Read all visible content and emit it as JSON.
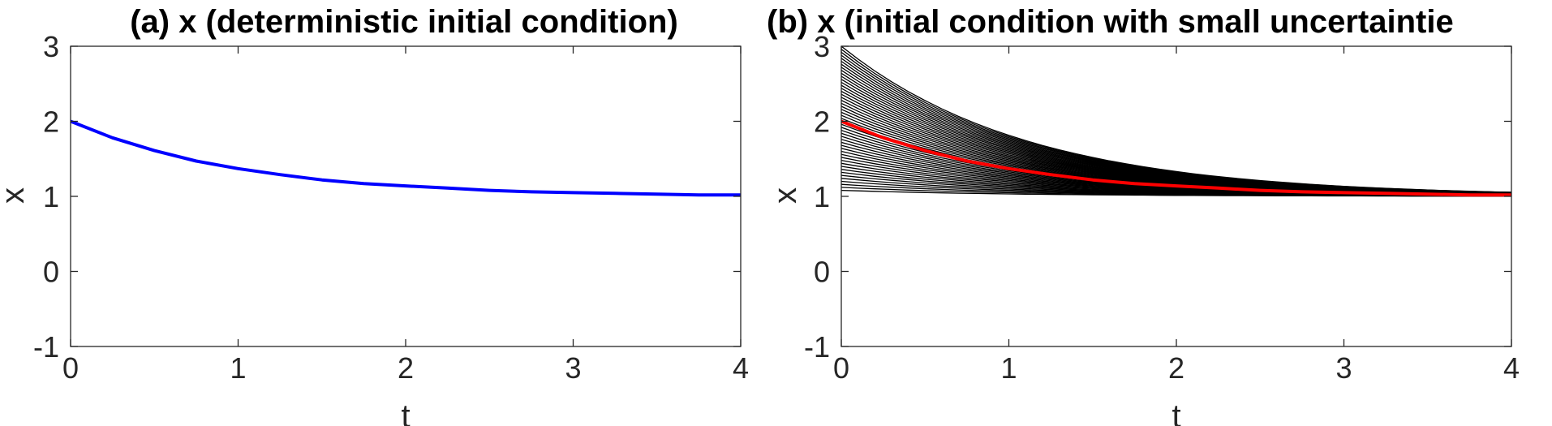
{
  "chart_data": [
    {
      "type": "line",
      "title": "(a) x (deterministic initial condition)",
      "xlabel": "t",
      "ylabel": "x",
      "xlim": [
        0,
        4
      ],
      "ylim": [
        -1,
        3
      ],
      "xticks": [
        0,
        1,
        2,
        3,
        4
      ],
      "yticks": [
        -1,
        0,
        1,
        2,
        3
      ],
      "grid": false,
      "series": [
        {
          "color": "#0000ff",
          "x": [
            0,
            0.25,
            0.5,
            0.75,
            1,
            1.25,
            1.5,
            1.75,
            2,
            2.25,
            2.5,
            2.75,
            3,
            3.25,
            3.5,
            3.75,
            4
          ],
          "y": [
            2.0,
            1.78,
            1.61,
            1.47,
            1.37,
            1.29,
            1.22,
            1.17,
            1.14,
            1.11,
            1.08,
            1.06,
            1.05,
            1.04,
            1.03,
            1.02,
            1.02
          ]
        }
      ]
    },
    {
      "type": "line",
      "title": "(b) x (initial condition with small uncertaintie",
      "xlabel": "t",
      "ylabel": "x",
      "xlim": [
        0,
        4
      ],
      "ylim": [
        -1,
        3
      ],
      "xticks": [
        0,
        1,
        2,
        3,
        4
      ],
      "yticks": [
        -1,
        0,
        1,
        2,
        3
      ],
      "grid": false,
      "ensemble": {
        "color": "#000000",
        "initial_values": [
          3.0,
          2.96,
          2.92,
          2.88,
          2.84,
          2.8,
          2.76,
          2.72,
          2.68,
          2.64,
          2.6,
          2.56,
          2.52,
          2.48,
          2.44,
          2.4,
          2.36,
          2.32,
          2.28,
          2.24,
          2.2,
          2.16,
          2.12,
          2.08,
          2.04,
          2.0,
          1.96,
          1.92,
          1.88,
          1.84,
          1.8,
          1.76,
          1.72,
          1.68,
          1.64,
          1.6,
          1.56,
          1.52,
          1.48,
          1.44,
          1.4,
          1.36,
          1.32,
          1.28,
          1.24,
          1.2,
          1.16,
          1.12,
          1.08
        ],
        "decay_rate": 0.9
      },
      "series": [
        {
          "color": "#ff0000",
          "x": [
            0,
            0.25,
            0.5,
            0.75,
            1,
            1.25,
            1.5,
            1.75,
            2,
            2.25,
            2.5,
            2.75,
            3,
            3.25,
            3.5,
            3.75,
            4
          ],
          "y": [
            2.0,
            1.78,
            1.61,
            1.47,
            1.37,
            1.29,
            1.22,
            1.17,
            1.14,
            1.11,
            1.08,
            1.06,
            1.05,
            1.04,
            1.03,
            1.02,
            1.02
          ]
        }
      ]
    }
  ]
}
